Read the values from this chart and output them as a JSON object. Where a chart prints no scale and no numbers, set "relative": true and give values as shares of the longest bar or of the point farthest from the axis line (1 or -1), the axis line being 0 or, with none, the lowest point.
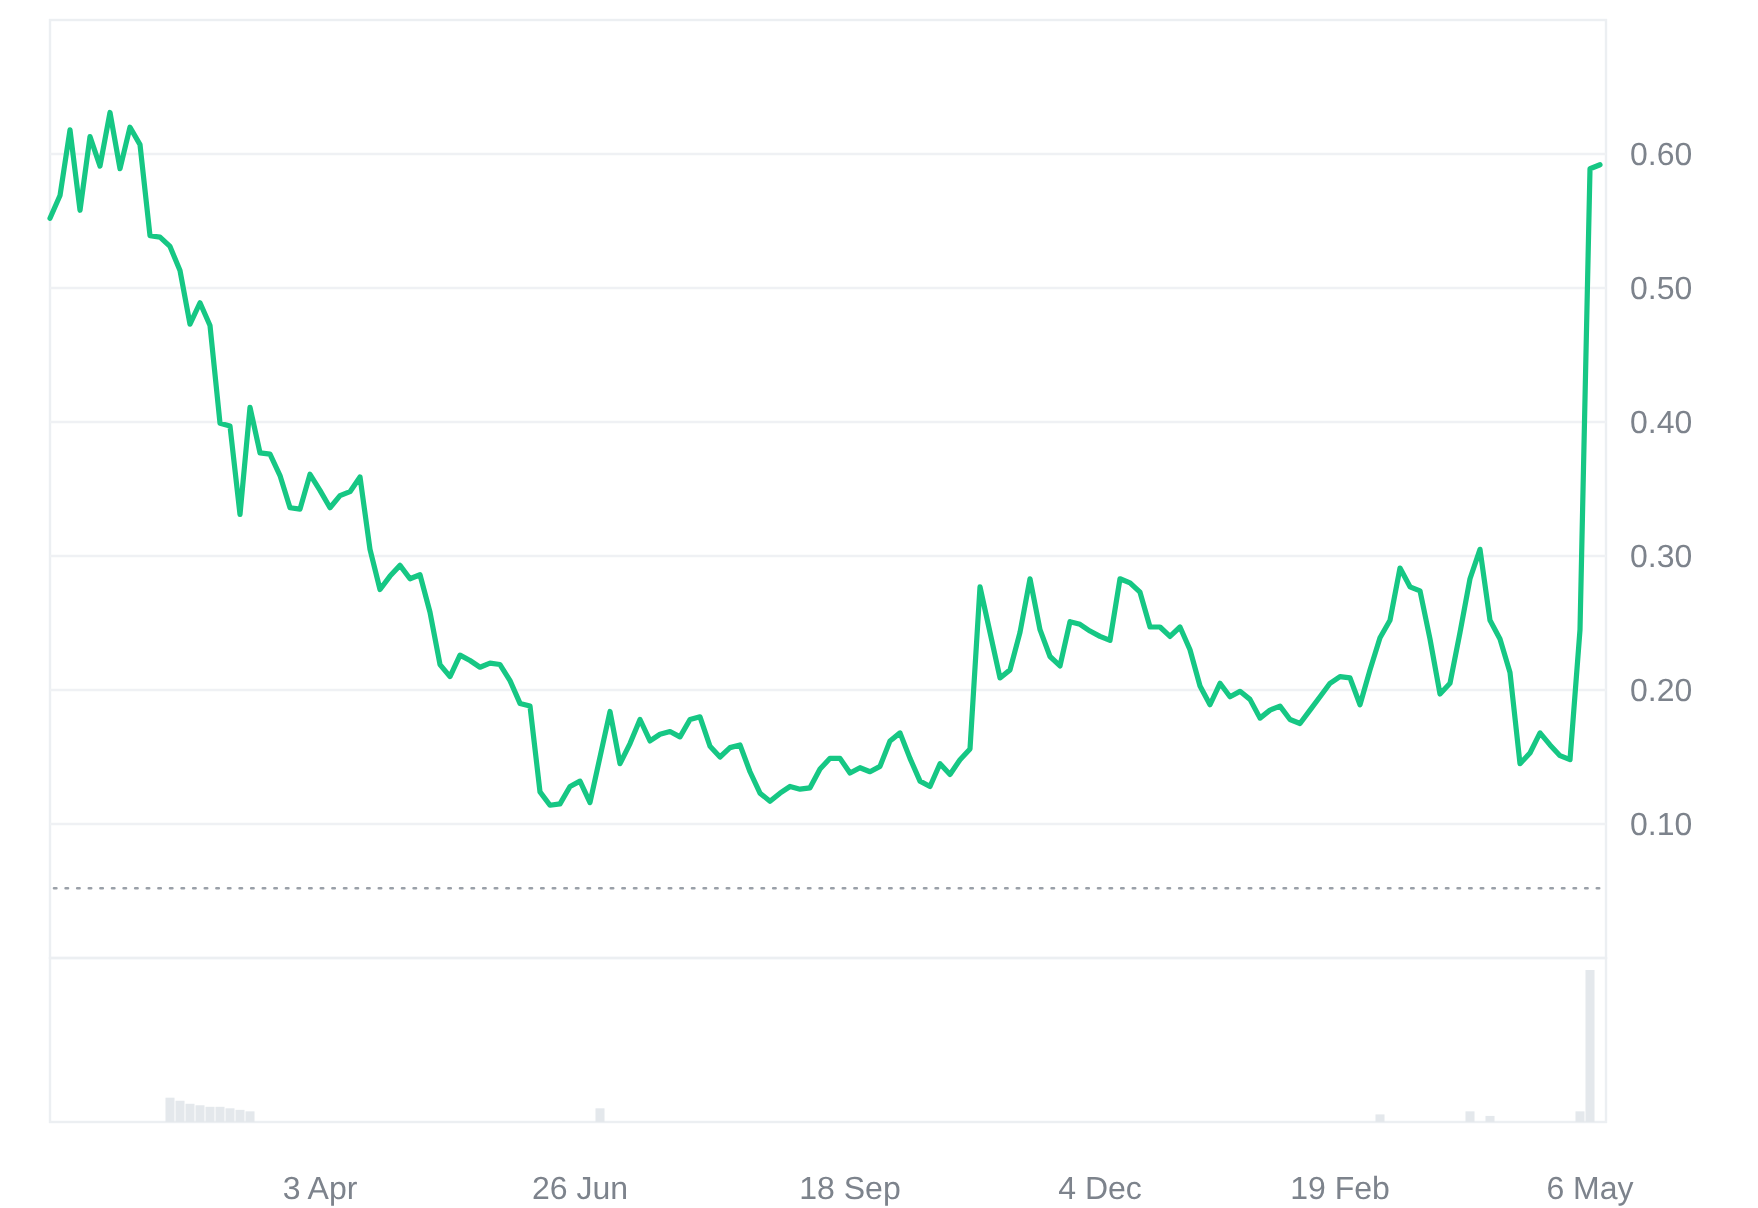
{
  "chart_data": [
    {
      "type": "line",
      "color": "#16c784",
      "ylim": [
        0,
        0.7
      ],
      "yticks": [
        {
          "value": 0.1,
          "label": "0.10"
        },
        {
          "value": 0.2,
          "label": "0.20"
        },
        {
          "value": 0.3,
          "label": "0.30"
        },
        {
          "value": 0.4,
          "label": "0.40"
        },
        {
          "value": 0.5,
          "label": "0.50"
        },
        {
          "value": 0.6,
          "label": "0.60"
        }
      ],
      "grid": "y",
      "tick_labels": "y",
      "ref_lines": [
        {
          "axis": "y",
          "value": 0.052,
          "line_style": "dotted",
          "color": "#9aa0a8"
        }
      ],
      "categories": [
        null,
        null,
        null,
        null,
        null,
        null,
        null,
        null,
        null,
        null,
        null,
        null,
        null,
        null,
        null,
        null,
        null,
        null,
        null,
        null,
        null,
        null,
        null,
        null,
        null,
        null,
        null,
        null,
        null,
        null,
        null,
        null,
        null,
        null,
        null,
        null,
        null,
        null,
        null,
        null,
        null,
        null,
        null,
        null,
        null,
        null,
        null,
        null,
        null,
        null,
        null,
        null,
        null,
        null,
        null,
        null,
        null,
        null,
        null,
        null,
        null,
        null,
        null,
        null,
        null,
        null,
        null,
        null,
        null,
        null,
        null,
        null,
        null,
        null,
        null,
        null,
        null,
        null,
        null,
        null,
        null,
        null,
        null,
        null,
        null,
        null,
        null,
        null,
        null,
        null,
        null,
        null,
        null,
        null,
        null,
        null,
        null,
        null,
        null,
        null,
        null,
        null,
        null,
        null,
        null,
        null,
        null,
        null,
        null,
        null,
        null,
        null,
        null,
        null,
        null,
        null,
        null,
        null,
        null,
        null,
        null,
        null,
        null,
        null,
        null,
        null,
        null,
        null,
        null,
        null,
        null,
        null,
        null,
        null,
        null,
        null,
        null,
        null,
        null,
        null,
        null,
        null,
        null,
        null,
        null,
        null,
        null,
        null,
        null,
        null,
        null,
        null,
        null,
        null,
        null,
        null
      ],
      "values": [
        0.552,
        0.569,
        0.618,
        0.558,
        0.613,
        0.591,
        0.631,
        0.589,
        0.62,
        0.607,
        0.539,
        0.538,
        0.531,
        0.513,
        0.473,
        0.489,
        0.472,
        0.399,
        0.397,
        0.331,
        0.411,
        0.377,
        0.376,
        0.36,
        0.336,
        0.335,
        0.361,
        0.349,
        0.336,
        0.345,
        0.348,
        0.359,
        0.305,
        0.275,
        0.285,
        0.293,
        0.283,
        0.286,
        0.258,
        0.219,
        0.21,
        0.226,
        0.222,
        0.217,
        0.22,
        0.219,
        0.207,
        0.19,
        0.188,
        0.124,
        0.114,
        0.115,
        0.128,
        0.132,
        0.116,
        0.15,
        0.184,
        0.145,
        0.16,
        0.178,
        0.162,
        0.167,
        0.169,
        0.165,
        0.178,
        0.18,
        0.158,
        0.15,
        0.157,
        0.159,
        0.139,
        0.123,
        0.117,
        0.123,
        0.128,
        0.126,
        0.127,
        0.141,
        0.149,
        0.149,
        0.138,
        0.142,
        0.139,
        0.143,
        0.162,
        0.168,
        0.149,
        0.132,
        0.128,
        0.145,
        0.137,
        0.148,
        0.156,
        0.277,
        0.243,
        0.209,
        0.215,
        0.243,
        0.283,
        0.245,
        0.225,
        0.218,
        0.251,
        0.249,
        0.244,
        0.24,
        0.237,
        0.283,
        0.28,
        0.273,
        0.247,
        0.247,
        0.24,
        0.247,
        0.23,
        0.203,
        0.189,
        0.205,
        0.195,
        0.199,
        0.193,
        0.179,
        0.185,
        0.188,
        0.178,
        0.175,
        0.185,
        0.195,
        0.205,
        0.21,
        0.209,
        0.189,
        0.215,
        0.239,
        0.252,
        0.291,
        0.277,
        0.274,
        0.238,
        0.197,
        0.205,
        0.243,
        0.283,
        0.305,
        0.252,
        0.238,
        0.213,
        0.145,
        0.153,
        0.168,
        0.159,
        0.151,
        0.148,
        0.245,
        0.589,
        0.592
      ]
    },
    {
      "type": "bar",
      "relative": true,
      "color": "#e4e8ec",
      "tick_labels": "x",
      "categories": [
        null,
        null,
        null,
        null,
        null,
        null,
        null,
        null,
        null,
        null,
        null,
        null,
        null,
        null,
        null,
        null,
        null,
        null,
        null,
        null,
        null,
        null,
        null,
        null,
        null,
        null,
        null,
        "3 Apr",
        null,
        null,
        null,
        null,
        null,
        null,
        null,
        null,
        null,
        null,
        null,
        null,
        null,
        null,
        null,
        null,
        null,
        null,
        null,
        null,
        null,
        null,
        null,
        null,
        null,
        "26 Jun",
        null,
        null,
        null,
        null,
        null,
        null,
        null,
        null,
        null,
        null,
        null,
        null,
        null,
        null,
        null,
        null,
        null,
        null,
        null,
        null,
        null,
        null,
        null,
        null,
        null,
        null,
        "18 Sep",
        null,
        null,
        null,
        null,
        null,
        null,
        null,
        null,
        null,
        null,
        null,
        null,
        null,
        null,
        null,
        null,
        null,
        null,
        null,
        null,
        null,
        null,
        null,
        null,
        "4 Dec",
        null,
        null,
        null,
        null,
        null,
        null,
        null,
        null,
        null,
        null,
        null,
        null,
        null,
        null,
        null,
        null,
        null,
        null,
        null,
        null,
        null,
        null,
        null,
        "19 Feb",
        null,
        null,
        null,
        null,
        null,
        null,
        null,
        null,
        null,
        null,
        null,
        null,
        null,
        null,
        null,
        null,
        null,
        null,
        null,
        null,
        null,
        null,
        null,
        null,
        "6 May",
        null
      ],
      "values": [
        null,
        null,
        null,
        null,
        null,
        null,
        null,
        null,
        null,
        null,
        null,
        null,
        0.16,
        0.14,
        0.12,
        0.11,
        0.1,
        0.1,
        0.09,
        0.08,
        0.07,
        null,
        null,
        null,
        null,
        null,
        null,
        null,
        null,
        null,
        null,
        null,
        null,
        null,
        null,
        null,
        null,
        null,
        null,
        null,
        null,
        null,
        null,
        null,
        null,
        null,
        null,
        null,
        null,
        null,
        null,
        null,
        null,
        null,
        null,
        0.09,
        null,
        null,
        null,
        null,
        null,
        null,
        null,
        null,
        null,
        null,
        null,
        null,
        null,
        null,
        null,
        null,
        null,
        null,
        null,
        null,
        null,
        null,
        null,
        null,
        null,
        null,
        null,
        null,
        null,
        null,
        null,
        null,
        null,
        null,
        null,
        null,
        null,
        null,
        null,
        null,
        null,
        null,
        null,
        null,
        null,
        null,
        null,
        null,
        null,
        null,
        null,
        null,
        null,
        null,
        null,
        null,
        null,
        null,
        null,
        null,
        null,
        null,
        null,
        null,
        null,
        null,
        null,
        null,
        null,
        null,
        null,
        null,
        null,
        null,
        null,
        null,
        null,
        0.05,
        null,
        null,
        null,
        null,
        null,
        null,
        null,
        null,
        0.07,
        null,
        0.04,
        null,
        null,
        null,
        null,
        null,
        null,
        null,
        null,
        0.07,
        1,
        null
      ]
    }
  ]
}
